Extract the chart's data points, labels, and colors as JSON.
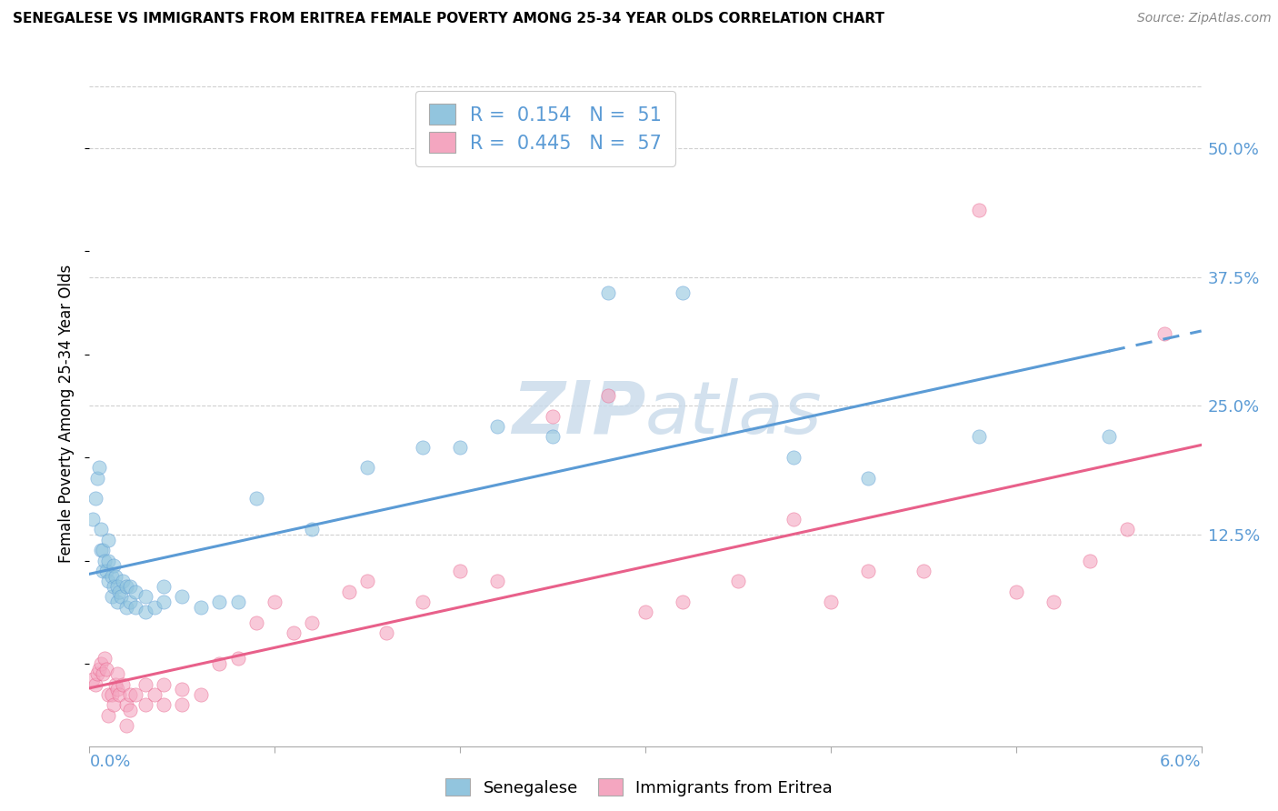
{
  "title": "SENEGALESE VS IMMIGRANTS FROM ERITREA FEMALE POVERTY AMONG 25-34 YEAR OLDS CORRELATION CHART",
  "source": "Source: ZipAtlas.com",
  "ylabel": "Female Poverty Among 25-34 Year Olds",
  "ytick_labels": [
    "50.0%",
    "37.5%",
    "25.0%",
    "12.5%"
  ],
  "ytick_values": [
    0.5,
    0.375,
    0.25,
    0.125
  ],
  "xmin": 0.0,
  "xmax": 0.06,
  "ymin": -0.08,
  "ymax": 0.565,
  "blue_color": "#92c5de",
  "pink_color": "#f4a6c0",
  "blue_line_color": "#5b9bd5",
  "pink_line_color": "#e8608a",
  "watermark_color": "#c8daea",
  "legend_blue_r": "0.154",
  "legend_blue_n": "51",
  "legend_pink_r": "0.445",
  "legend_pink_n": "57",
  "blue_x": [
    0.0002,
    0.0003,
    0.0004,
    0.0005,
    0.0006,
    0.0006,
    0.0007,
    0.0007,
    0.0008,
    0.0009,
    0.001,
    0.001,
    0.001,
    0.0012,
    0.0012,
    0.0013,
    0.0013,
    0.0014,
    0.0015,
    0.0015,
    0.0016,
    0.0017,
    0.0018,
    0.002,
    0.002,
    0.0022,
    0.0022,
    0.0025,
    0.0025,
    0.003,
    0.003,
    0.0035,
    0.004,
    0.004,
    0.005,
    0.006,
    0.007,
    0.008,
    0.009,
    0.012,
    0.015,
    0.018,
    0.02,
    0.022,
    0.025,
    0.028,
    0.032,
    0.038,
    0.042,
    0.048,
    0.055
  ],
  "blue_y": [
    0.14,
    0.16,
    0.18,
    0.19,
    0.11,
    0.13,
    0.09,
    0.11,
    0.1,
    0.09,
    0.08,
    0.1,
    0.12,
    0.065,
    0.085,
    0.095,
    0.075,
    0.085,
    0.06,
    0.075,
    0.07,
    0.065,
    0.08,
    0.055,
    0.075,
    0.06,
    0.075,
    0.055,
    0.07,
    0.05,
    0.065,
    0.055,
    0.06,
    0.075,
    0.065,
    0.055,
    0.06,
    0.06,
    0.16,
    0.13,
    0.19,
    0.21,
    0.21,
    0.23,
    0.22,
    0.36,
    0.36,
    0.2,
    0.18,
    0.22,
    0.22
  ],
  "pink_x": [
    0.0002,
    0.0003,
    0.0004,
    0.0005,
    0.0006,
    0.0007,
    0.0008,
    0.0009,
    0.001,
    0.001,
    0.0012,
    0.0013,
    0.0014,
    0.0015,
    0.0015,
    0.0016,
    0.0018,
    0.002,
    0.002,
    0.0022,
    0.0022,
    0.0025,
    0.003,
    0.003,
    0.0035,
    0.004,
    0.004,
    0.005,
    0.005,
    0.006,
    0.007,
    0.008,
    0.009,
    0.01,
    0.011,
    0.012,
    0.014,
    0.015,
    0.016,
    0.018,
    0.02,
    0.022,
    0.025,
    0.028,
    0.03,
    0.032,
    0.035,
    0.038,
    0.04,
    0.042,
    0.045,
    0.048,
    0.05,
    0.052,
    0.054,
    0.056,
    0.058
  ],
  "pink_y": [
    -0.015,
    -0.02,
    -0.01,
    -0.005,
    0.0,
    -0.01,
    0.005,
    -0.005,
    -0.03,
    -0.05,
    -0.03,
    -0.04,
    -0.02,
    -0.01,
    -0.025,
    -0.03,
    -0.02,
    -0.04,
    -0.06,
    -0.03,
    -0.045,
    -0.03,
    -0.04,
    -0.02,
    -0.03,
    -0.04,
    -0.02,
    -0.025,
    -0.04,
    -0.03,
    0.0,
    0.005,
    0.04,
    0.06,
    0.03,
    0.04,
    0.07,
    0.08,
    0.03,
    0.06,
    0.09,
    0.08,
    0.24,
    0.26,
    0.05,
    0.06,
    0.08,
    0.14,
    0.06,
    0.09,
    0.09,
    0.44,
    0.07,
    0.06,
    0.1,
    0.13,
    0.32
  ],
  "grid_color": "#d0d0d0",
  "bg_color": "#ffffff"
}
